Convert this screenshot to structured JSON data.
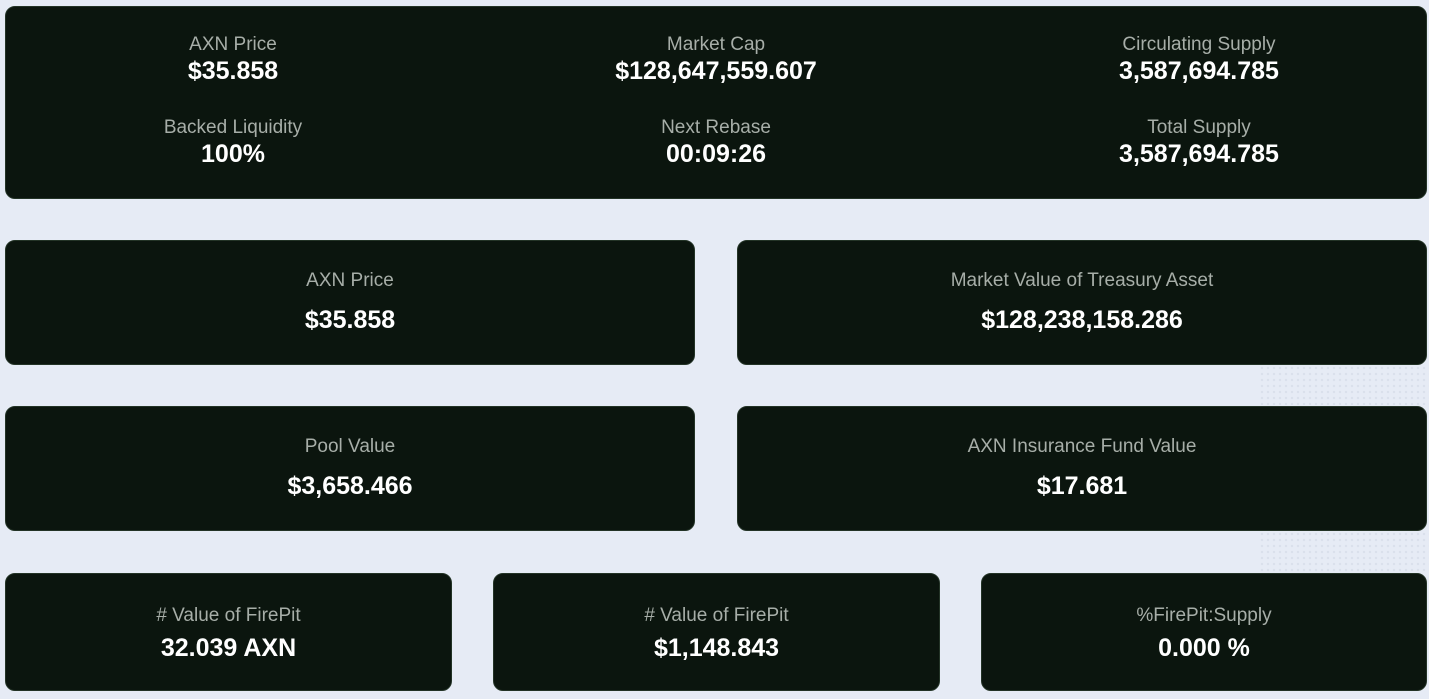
{
  "summary": {
    "axn_price": {
      "label": "AXN Price",
      "value": "$35.858"
    },
    "market_cap": {
      "label": "Market Cap",
      "value": "$128,647,559.607"
    },
    "circulating_supply": {
      "label": "Circulating Supply",
      "value": "3,587,694.785"
    },
    "backed_liquidity": {
      "label": "Backed Liquidity",
      "value": "100%"
    },
    "next_rebase": {
      "label": "Next Rebase",
      "value": "00:09:26"
    },
    "total_supply": {
      "label": "Total Supply",
      "value": "3,587,694.785"
    }
  },
  "cards": {
    "axn_price": {
      "label": "AXN Price",
      "value": "$35.858"
    },
    "treasury": {
      "label": "Market Value of Treasury Asset",
      "value": "$128,238,158.286"
    },
    "pool": {
      "label": "Pool Value",
      "value": "$3,658.466"
    },
    "insurance": {
      "label": "AXN Insurance Fund Value",
      "value": "$17.681"
    },
    "firepit_axn": {
      "label": "# Value of FirePit",
      "value": "32.039 AXN"
    },
    "firepit_usd": {
      "label": "# Value of FirePit",
      "value": "$1,148.843"
    },
    "firepit_supply": {
      "label": "%FirePit:Supply",
      "value": "0.000 %"
    }
  },
  "colors": {
    "page_background": "#e6ebf5",
    "card_background": "#0b150e",
    "label_text": "#a7aea8",
    "value_text": "#ffffff"
  }
}
